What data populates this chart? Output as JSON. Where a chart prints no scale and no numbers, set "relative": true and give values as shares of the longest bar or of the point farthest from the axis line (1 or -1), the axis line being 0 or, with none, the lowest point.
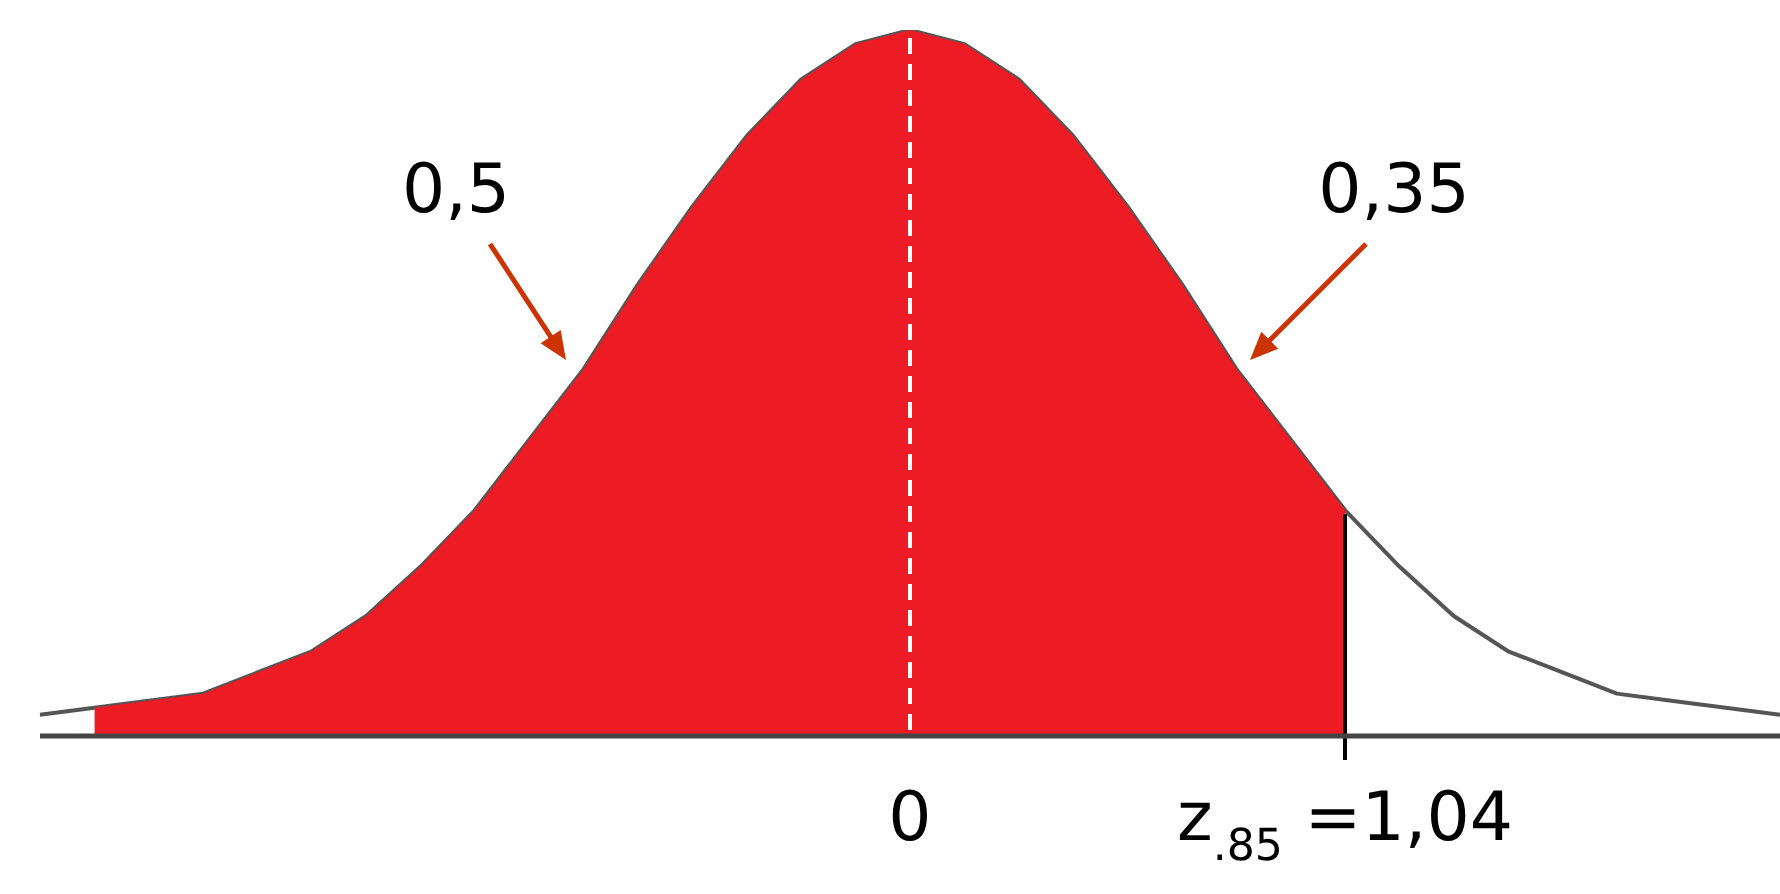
{
  "chart_data": {
    "type": "area",
    "relative": true,
    "legend": false,
    "categories": [
      null,
      null,
      null,
      null,
      null,
      null,
      null,
      null,
      null,
      null,
      null,
      null,
      null,
      null,
      null,
      null,
      "0",
      null,
      null,
      null,
      null,
      null,
      null,
      null,
      "z$_{.85}$ =1,04",
      null,
      null,
      null,
      null,
      null,
      null,
      null,
      null
    ],
    "series": [
      {
        "type": "area",
        "color": "#ed1c24",
        "values": [
          null,
          0.04,
          0.05,
          0.06,
          0.09,
          0.12,
          0.17,
          0.24,
          0.32,
          0.42,
          0.52,
          0.64,
          0.75,
          0.85,
          0.93,
          0.98,
          1.0,
          0.98,
          0.93,
          0.85,
          0.75,
          0.64,
          0.52,
          0.42,
          0.32,
          null,
          null,
          null,
          null,
          null,
          null,
          null,
          null
        ]
      },
      {
        "type": "line",
        "color": "#555555",
        "values": [
          0.03,
          0.04,
          0.05,
          0.06,
          0.09,
          0.12,
          0.17,
          0.24,
          0.32,
          0.42,
          0.52,
          0.64,
          0.75,
          0.85,
          0.93,
          0.98,
          1.0,
          0.98,
          0.93,
          0.85,
          0.75,
          0.64,
          0.52,
          0.42,
          0.32,
          0.24,
          0.17,
          0.12,
          0.09,
          0.06,
          0.05,
          0.04,
          0.03
        ]
      }
    ],
    "ref_lines": [
      {
        "axis": "x",
        "value": "0",
        "color": "#ffffff",
        "line_style": "dashed"
      },
      {
        "axis": "x",
        "value": "z$_{.85}$ =1,04",
        "color": "#000000",
        "line_style": "solid"
      }
    ],
    "annotations": [
      "0,5",
      "0,35"
    ]
  }
}
